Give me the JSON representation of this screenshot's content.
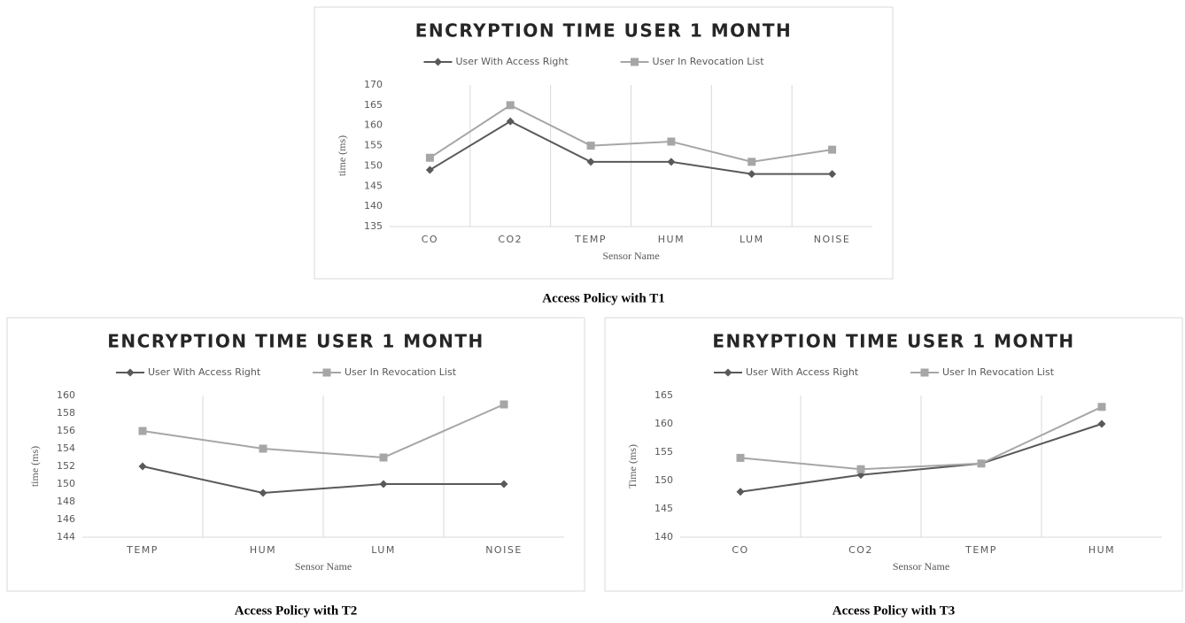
{
  "chart_data": [
    {
      "type": "line",
      "title": "ENCRYPTION TIME USER 1 MONTH",
      "caption": "Access Policy with T1",
      "x_label": "Sensor Name",
      "y_label": "time (ms)",
      "categories": [
        "CO",
        "CO2",
        "TEMP",
        "HUM",
        "LUM",
        "NOISE"
      ],
      "series": [
        {
          "name": "User With Access Right",
          "color": "#595959",
          "marker": "diamond",
          "values": [
            149,
            161,
            151,
            151,
            148,
            148
          ]
        },
        {
          "name": "User In Revocation List",
          "color": "#a6a6a6",
          "marker": "square",
          "values": [
            152,
            165,
            155,
            156,
            151,
            154
          ]
        }
      ],
      "ylim": [
        135,
        170
      ],
      "yticks": [
        135,
        140,
        145,
        150,
        155,
        160,
        165,
        170
      ],
      "legend": "top"
    },
    {
      "type": "line",
      "title": "ENCRYPTION TIME USER 1 MONTH",
      "caption": "Access Policy with T2",
      "x_label": "Sensor Name",
      "y_label": "time (ms)",
      "categories": [
        "TEMP",
        "HUM",
        "LUM",
        "NOISE"
      ],
      "series": [
        {
          "name": "User With Access Right",
          "color": "#595959",
          "marker": "diamond",
          "values": [
            152,
            149,
            150,
            150
          ]
        },
        {
          "name": "User In Revocation List",
          "color": "#a6a6a6",
          "marker": "square",
          "values": [
            156,
            154,
            153,
            159
          ]
        }
      ],
      "ylim": [
        144,
        160
      ],
      "yticks": [
        144,
        146,
        148,
        150,
        152,
        154,
        156,
        158,
        160
      ],
      "legend": "top"
    },
    {
      "type": "line",
      "title": "ENRYPTION TIME USER 1 MONTH",
      "caption": "Access Policy with T3",
      "x_label": "Sensor Name",
      "y_label": "Time (ms)",
      "categories": [
        "CO",
        "CO2",
        "TEMP",
        "HUM"
      ],
      "series": [
        {
          "name": "User With Access Right",
          "color": "#595959",
          "marker": "diamond",
          "values": [
            148,
            151,
            153,
            160
          ]
        },
        {
          "name": "User In Revocation List",
          "color": "#a6a6a6",
          "marker": "square",
          "values": [
            154,
            152,
            153,
            163
          ]
        }
      ],
      "ylim": [
        140,
        165
      ],
      "yticks": [
        140,
        145,
        150,
        155,
        160,
        165
      ],
      "legend": "top"
    }
  ]
}
